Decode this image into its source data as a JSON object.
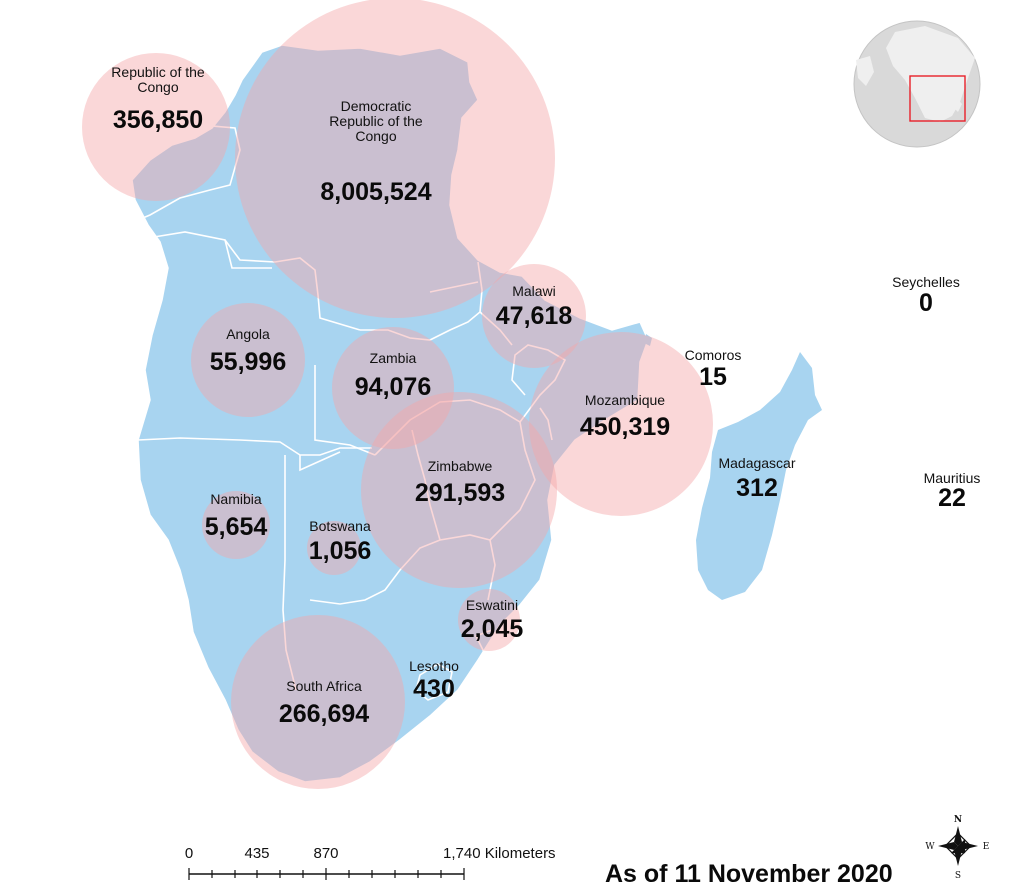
{
  "map": {
    "regions": [
      {
        "id": "republic-of-the-congo",
        "name_lines": [
          "Republic of the",
          "Congo"
        ],
        "value": "356,850"
      },
      {
        "id": "drc",
        "name_lines": [
          "Democratic",
          "Republic of the",
          "Congo"
        ],
        "value": "8,005,524"
      },
      {
        "id": "malawi",
        "name_lines": [
          "Malawi"
        ],
        "value": "47,618"
      },
      {
        "id": "angola",
        "name_lines": [
          "Angola"
        ],
        "value": "55,996"
      },
      {
        "id": "zambia",
        "name_lines": [
          "Zambia"
        ],
        "value": "94,076"
      },
      {
        "id": "mozambique",
        "name_lines": [
          "Mozambique"
        ],
        "value": "450,319"
      },
      {
        "id": "zimbabwe",
        "name_lines": [
          "Zimbabwe"
        ],
        "value": "291,593"
      },
      {
        "id": "namibia",
        "name_lines": [
          "Namibia"
        ],
        "value": "5,654"
      },
      {
        "id": "botswana",
        "name_lines": [
          "Botswana"
        ],
        "value": "1,056"
      },
      {
        "id": "eswatini",
        "name_lines": [
          "Eswatini"
        ],
        "value": "2,045"
      },
      {
        "id": "lesotho",
        "name_lines": [
          "Lesotho"
        ],
        "value": "430"
      },
      {
        "id": "south-africa",
        "name_lines": [
          "South Africa"
        ],
        "value": "266,694"
      },
      {
        "id": "comoros",
        "name_lines": [
          "Comoros"
        ],
        "value": "15"
      },
      {
        "id": "madagascar",
        "name_lines": [
          "Madagascar"
        ],
        "value": "312"
      },
      {
        "id": "seychelles",
        "name_lines": [
          "Seychelles"
        ],
        "value": "0"
      },
      {
        "id": "mauritius",
        "name_lines": [
          "Mauritius"
        ],
        "value": "22"
      }
    ],
    "colors": {
      "land": "#a8d4f0",
      "border": "#ffffff",
      "bubble_fill": "#f4a6a8",
      "bubble_opacity": 0.45,
      "globe": "#d9d9d9",
      "locator_box": "#e8202a"
    }
  },
  "scale_bar": {
    "ticks": [
      "0",
      "435",
      "870",
      "1,740 Kilometers"
    ]
  },
  "compass": {
    "n": "N",
    "s": "S",
    "e": "E",
    "w": "W"
  },
  "footer": {
    "date": "As of 11 November 2020"
  }
}
